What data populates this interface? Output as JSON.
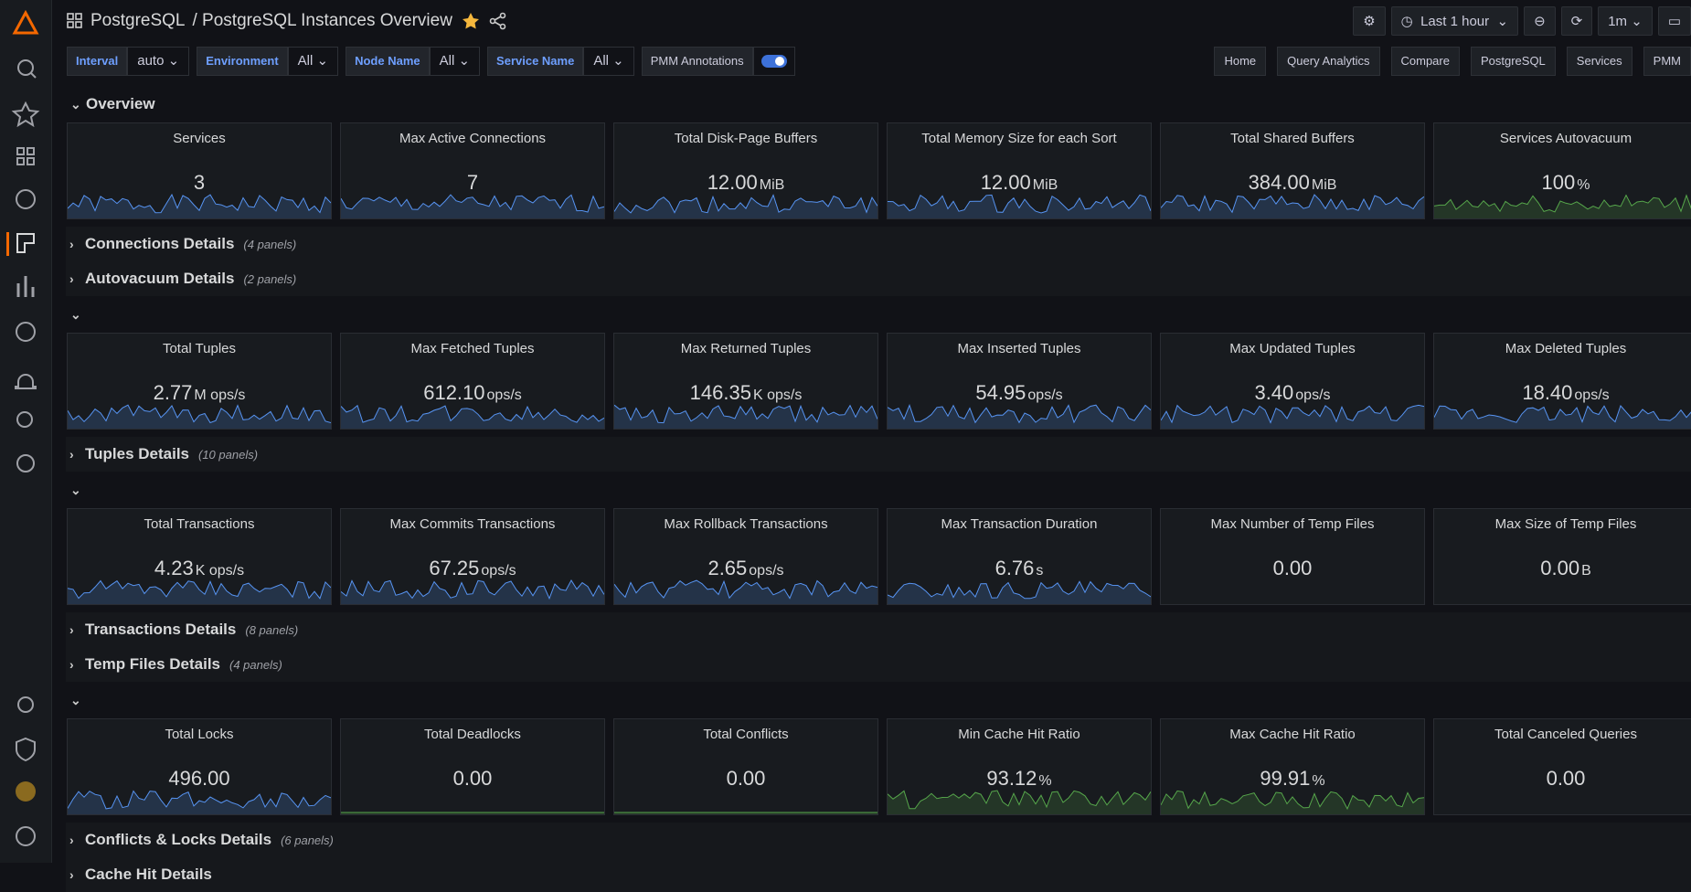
{
  "header": {
    "breadcrumb": "PostgreSQL",
    "title": "/ PostgreSQL Instances Overview",
    "time_range": "Last 1 hour",
    "refresh": "1m"
  },
  "variables": [
    {
      "label": "Interval",
      "value": "auto"
    },
    {
      "label": "Environment",
      "value": "All"
    },
    {
      "label": "Node Name",
      "value": "All"
    },
    {
      "label": "Service Name",
      "value": "All"
    }
  ],
  "annotations_toggle": "PMM Annotations",
  "links": [
    "Home",
    "Query Analytics",
    "Compare",
    "PostgreSQL",
    "Services",
    "PMM"
  ],
  "sections": [
    {
      "title": "Overview",
      "panels": [
        {
          "title": "Services",
          "value": "3",
          "color": "#5794f2"
        },
        {
          "title": "Max Active Connections",
          "value": "7",
          "color": "#5794f2"
        },
        {
          "title": "Total Disk-Page Buffers",
          "value": "12.00",
          "unit": "MiB",
          "color": "#5794f2"
        },
        {
          "title": "Total Memory Size for each Sort",
          "value": "12.00",
          "unit": "MiB",
          "color": "#5794f2"
        },
        {
          "title": "Total Shared Buffers",
          "value": "384.00",
          "unit": "MiB",
          "color": "#5794f2"
        },
        {
          "title": "Services Autovacuum",
          "value": "100",
          "unit": "%",
          "color": "#56a64b"
        }
      ]
    },
    {
      "title": "Connections Details",
      "count": "(4 panels)"
    },
    {
      "title": "Autovacuum Details",
      "count": "(2 panels)"
    },
    {
      "panels": [
        {
          "title": "Total Tuples",
          "value": "2.77",
          "unit": "M ops/s",
          "color": "#5794f2"
        },
        {
          "title": "Max Fetched Tuples",
          "value": "612.10",
          "unit": "ops/s",
          "color": "#5794f2"
        },
        {
          "title": "Max Returned Tuples",
          "value": "146.35",
          "unit": "K ops/s",
          "color": "#5794f2"
        },
        {
          "title": "Max Inserted Tuples",
          "value": "54.95",
          "unit": "ops/s",
          "color": "#5794f2"
        },
        {
          "title": "Max Updated Tuples",
          "value": "3.40",
          "unit": "ops/s",
          "color": "#5794f2"
        },
        {
          "title": "Max Deleted Tuples",
          "value": "18.40",
          "unit": "ops/s",
          "color": "#5794f2"
        }
      ]
    },
    {
      "title": "Tuples Details",
      "count": "(10 panels)"
    },
    {
      "panels": [
        {
          "title": "Total Transactions",
          "value": "4.23",
          "unit": "K ops/s",
          "color": "#5794f2"
        },
        {
          "title": "Max Commits Transactions",
          "value": "67.25",
          "unit": "ops/s",
          "color": "#5794f2"
        },
        {
          "title": "Max Rollback Transactions",
          "value": "2.65",
          "unit": "ops/s",
          "color": "#5794f2"
        },
        {
          "title": "Max Transaction Duration",
          "value": "6.76",
          "unit": "s",
          "color": "#5794f2"
        },
        {
          "title": "Max Number of Temp Files",
          "value": "0.00"
        },
        {
          "title": "Max Size of Temp Files",
          "value": "0.00",
          "unit": "B"
        }
      ]
    },
    {
      "title": "Transactions Details",
      "count": "(8 panels)"
    },
    {
      "title": "Temp Files Details",
      "count": "(4 panels)"
    },
    {
      "panels": [
        {
          "title": "Total Locks",
          "value": "496.00",
          "color": "#5794f2"
        },
        {
          "title": "Total Deadlocks",
          "value": "0.00",
          "color": "#56a64b"
        },
        {
          "title": "Total Conflicts",
          "value": "0.00",
          "color": "#56a64b"
        },
        {
          "title": "Min Cache Hit Ratio",
          "value": "93.12",
          "unit": "%",
          "color": "#56a64b"
        },
        {
          "title": "Max Cache Hit Ratio",
          "value": "99.91",
          "unit": "%",
          "color": "#56a64b"
        },
        {
          "title": "Total Canceled Queries",
          "value": "0.00"
        }
      ]
    },
    {
      "title": "Conflicts & Locks Details",
      "count": "(6 panels)"
    },
    {
      "title": "Cache Hit Details"
    }
  ]
}
